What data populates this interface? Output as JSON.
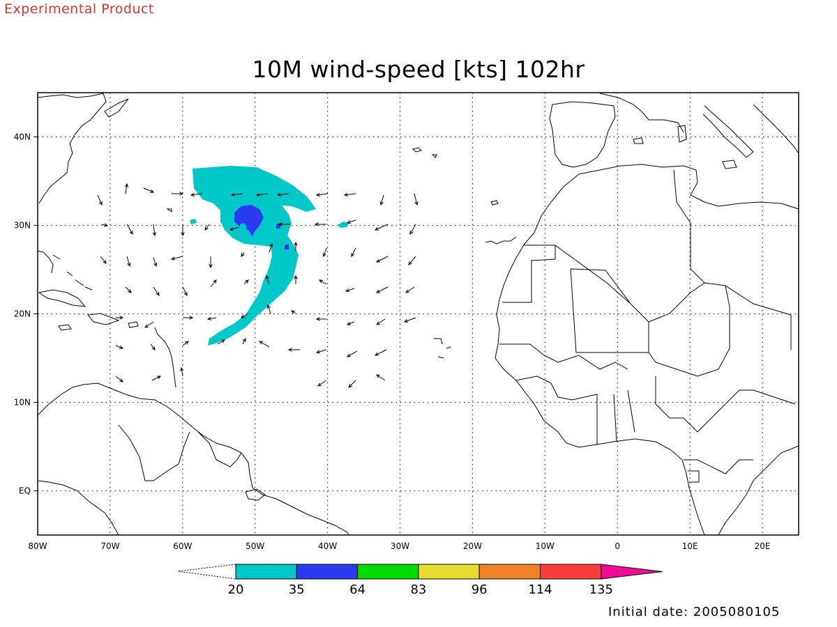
{
  "header": {
    "product_label": "Experimental Product",
    "title": "10M wind-speed [kts] 102hr",
    "initial_date": "Initial date: 2005080105"
  },
  "map": {
    "lat_labels": [
      "40N",
      "30N",
      "20N",
      "10N",
      "EQ"
    ],
    "lon_labels": [
      "80W",
      "70W",
      "60W",
      "50W",
      "40W",
      "30W",
      "20W",
      "10W",
      "0",
      "10E",
      "20E"
    ],
    "lon_range": [
      -80,
      25
    ],
    "lat_range": [
      -5,
      45
    ]
  },
  "colorbar": {
    "bounds": [
      "20",
      "35",
      "64",
      "83",
      "96",
      "114",
      "135"
    ],
    "colors": [
      "#00c8c8",
      "#2a3cf0",
      "#00dc00",
      "#e6dc32",
      "#f08228",
      "#fa3c3c",
      "#f00a96"
    ]
  }
}
